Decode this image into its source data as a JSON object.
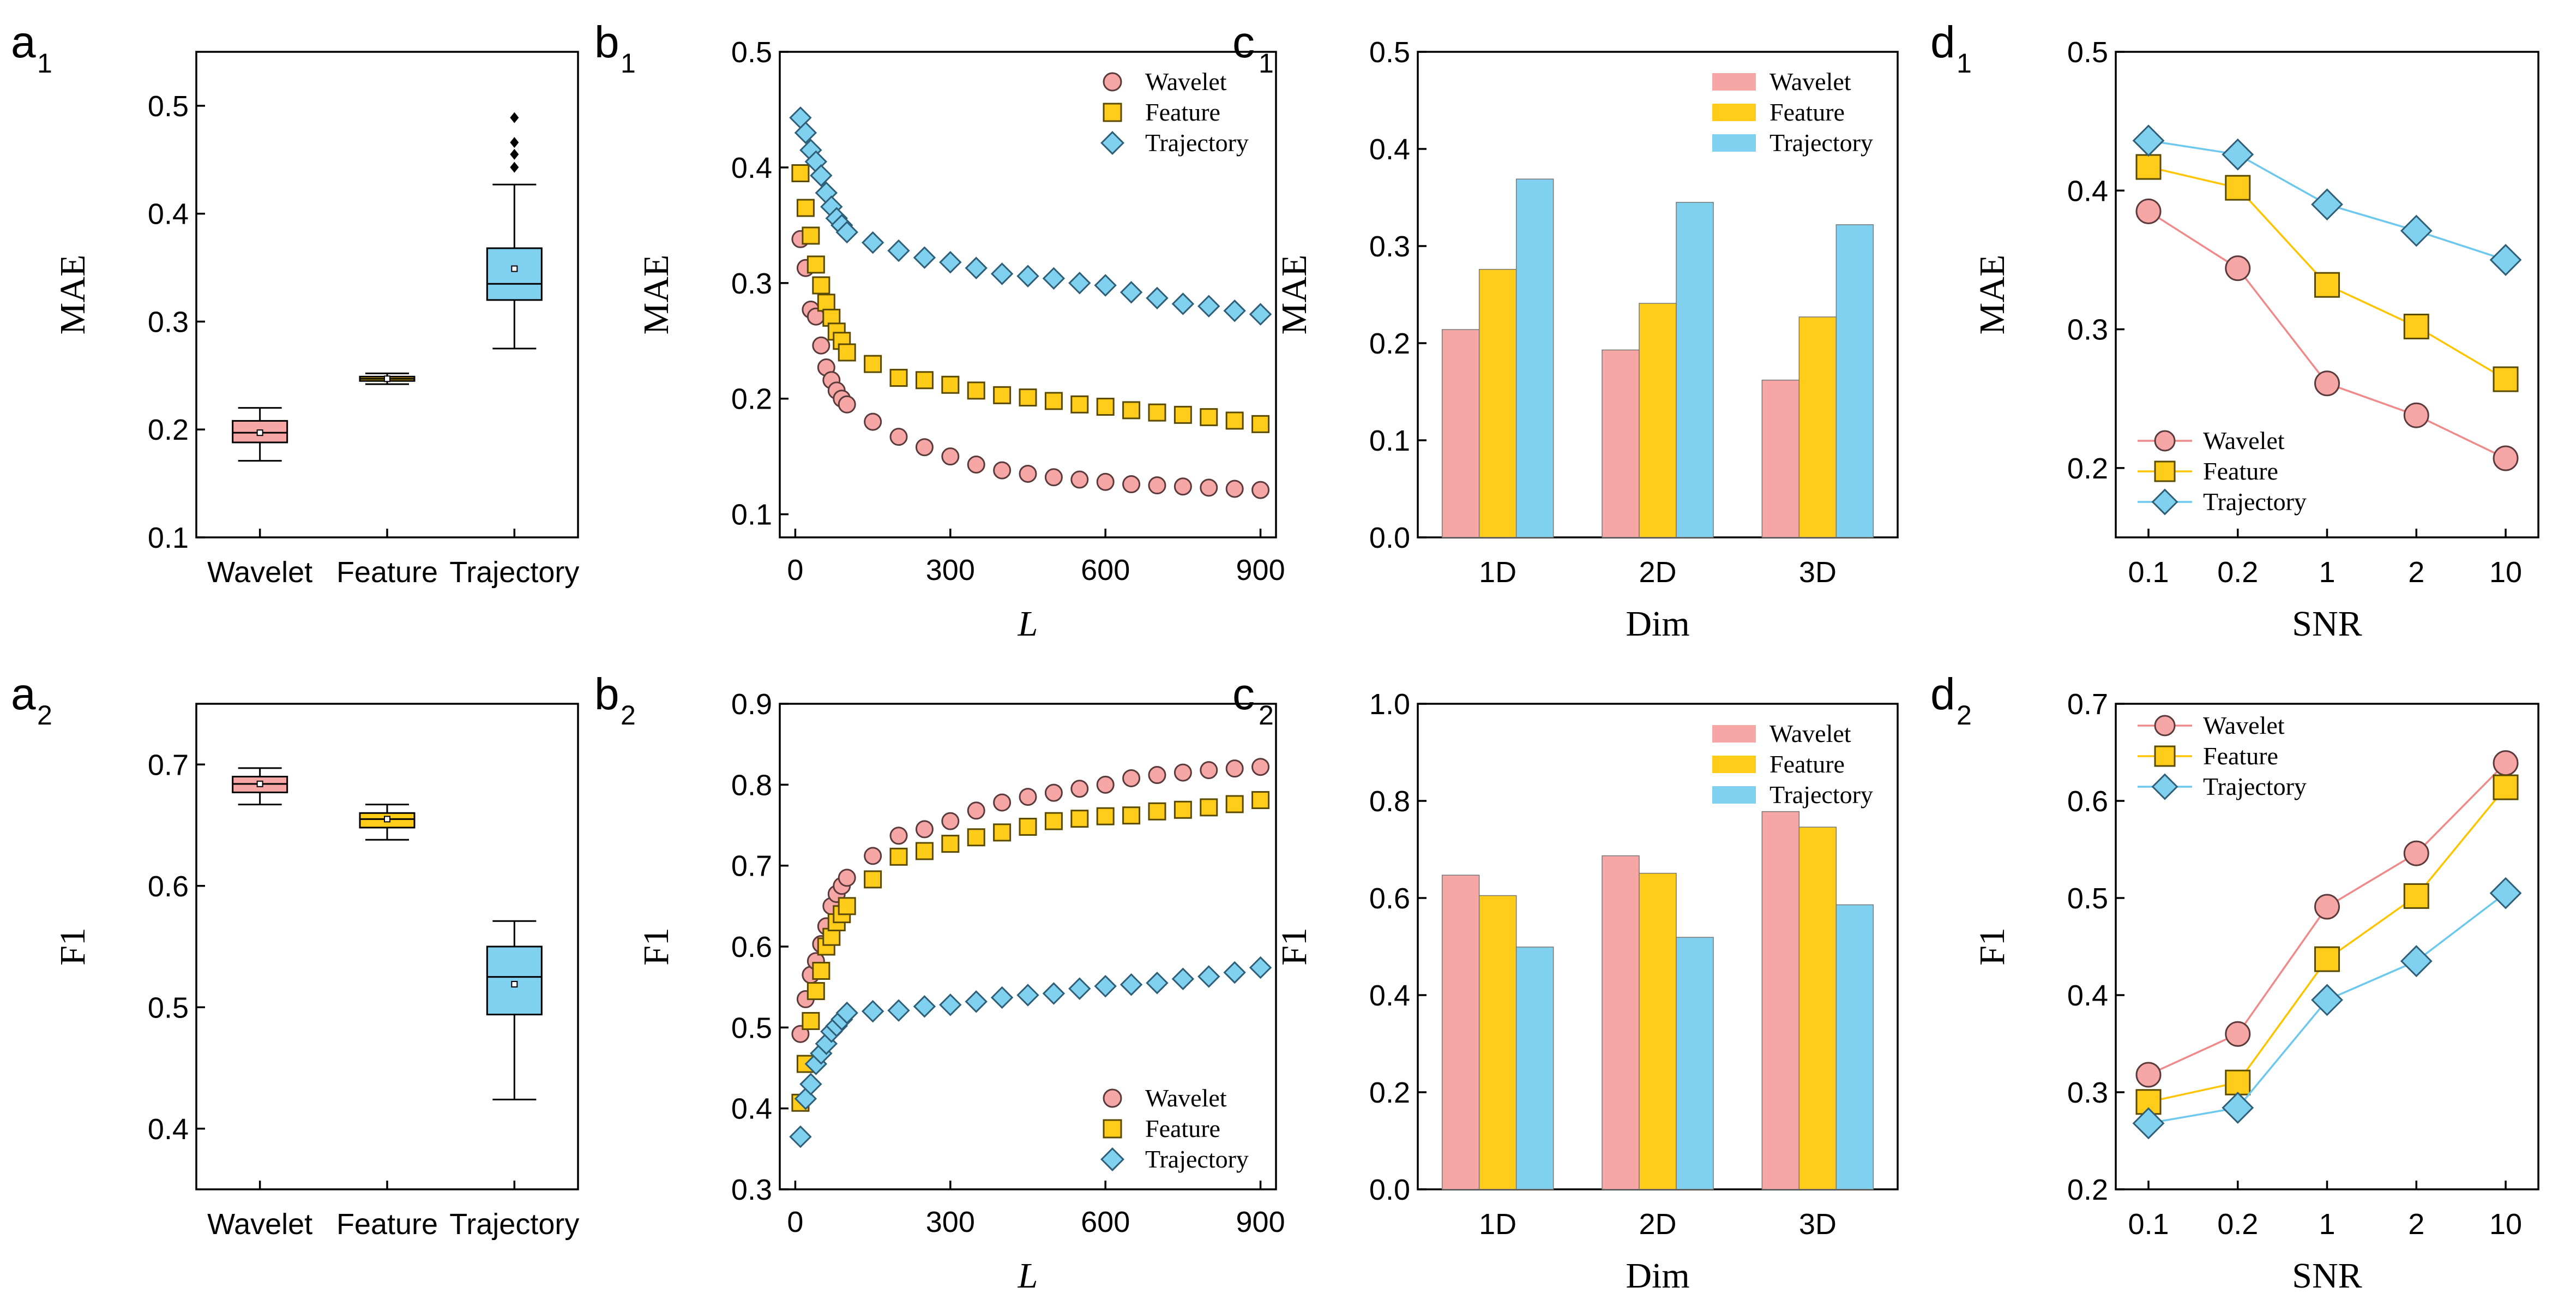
{
  "colors": {
    "wavelet": "#F7A6A6",
    "feature": "#FFCC1A",
    "trajectory": "#80D0F0",
    "wavelet_line": "#F08A8A",
    "feature_line": "#FFC400",
    "trajectory_line": "#6CC8EC"
  },
  "chart_data": [
    {
      "id": "a1",
      "panel_label": "a",
      "panel_sub": "1",
      "type": "box",
      "ylabel": "MAE",
      "xlabel": "",
      "ylim": [
        0.1,
        0.55
      ],
      "yticks": [
        "0.1",
        "0.2",
        "0.3",
        "0.4",
        "0.5"
      ],
      "categories": [
        "Wavelet",
        "Feature",
        "Trajectory"
      ],
      "boxes": [
        {
          "name": "Wavelet",
          "color_key": "wavelet",
          "whisker_low": 0.171,
          "q1": 0.188,
          "median": 0.197,
          "q3": 0.208,
          "whisker_high": 0.22,
          "mean": 0.197,
          "outliers": []
        },
        {
          "name": "Feature",
          "color_key": "feature",
          "whisker_low": 0.242,
          "q1": 0.245,
          "median": 0.247,
          "q3": 0.249,
          "whisker_high": 0.252,
          "mean": 0.247,
          "outliers": []
        },
        {
          "name": "Trajectory",
          "color_key": "trajectory",
          "whisker_low": 0.275,
          "q1": 0.32,
          "median": 0.335,
          "q3": 0.368,
          "whisker_high": 0.427,
          "mean": 0.349,
          "outliers": [
            0.443,
            0.455,
            0.466,
            0.489
          ]
        }
      ]
    },
    {
      "id": "b1",
      "panel_label": "b",
      "panel_sub": "1",
      "type": "scatter",
      "ylabel": "MAE",
      "xlabel": "L",
      "xlim": [
        -30,
        930
      ],
      "ylim": [
        0.08,
        0.5
      ],
      "xticks": [
        "0",
        "300",
        "600",
        "900"
      ],
      "yticks": [
        "0.1",
        "0.2",
        "0.3",
        "0.4",
        "0.5"
      ],
      "legend": "top-right",
      "series": [
        {
          "name": "Wavelet",
          "marker": "circle",
          "color_key": "wavelet",
          "x": [
            10,
            20,
            30,
            40,
            50,
            60,
            70,
            80,
            90,
            100,
            150,
            200,
            250,
            300,
            350,
            400,
            450,
            500,
            550,
            600,
            650,
            700,
            750,
            800,
            850,
            900
          ],
          "y": [
            0.338,
            0.313,
            0.277,
            0.271,
            0.246,
            0.227,
            0.216,
            0.207,
            0.2,
            0.195,
            0.18,
            0.167,
            0.158,
            0.15,
            0.143,
            0.138,
            0.135,
            0.132,
            0.13,
            0.128,
            0.126,
            0.125,
            0.124,
            0.123,
            0.122,
            0.121
          ]
        },
        {
          "name": "Feature",
          "marker": "square",
          "color_key": "feature",
          "x": [
            10,
            20,
            30,
            40,
            50,
            60,
            70,
            80,
            90,
            100,
            150,
            200,
            250,
            300,
            350,
            400,
            450,
            500,
            550,
            600,
            650,
            700,
            750,
            800,
            850,
            900
          ],
          "y": [
            0.395,
            0.365,
            0.341,
            0.316,
            0.298,
            0.283,
            0.27,
            0.258,
            0.25,
            0.24,
            0.23,
            0.218,
            0.216,
            0.212,
            0.207,
            0.203,
            0.201,
            0.198,
            0.195,
            0.193,
            0.19,
            0.188,
            0.186,
            0.184,
            0.181,
            0.178
          ]
        },
        {
          "name": "Trajectory",
          "marker": "diamond",
          "color_key": "trajectory",
          "x": [
            10,
            20,
            30,
            40,
            50,
            60,
            70,
            80,
            90,
            100,
            150,
            200,
            250,
            300,
            350,
            400,
            450,
            500,
            550,
            600,
            650,
            700,
            750,
            800,
            850,
            900
          ],
          "y": [
            0.443,
            0.43,
            0.415,
            0.405,
            0.393,
            0.378,
            0.366,
            0.356,
            0.35,
            0.344,
            0.335,
            0.328,
            0.322,
            0.318,
            0.313,
            0.308,
            0.306,
            0.304,
            0.3,
            0.298,
            0.292,
            0.287,
            0.282,
            0.28,
            0.276,
            0.273
          ]
        }
      ]
    },
    {
      "id": "c1",
      "panel_label": "c",
      "panel_sub": "1",
      "type": "bar",
      "ylabel": "MAE",
      "xlabel": "Dim",
      "ylim": [
        0,
        0.5
      ],
      "yticks": [
        "0.0",
        "0.1",
        "0.2",
        "0.3",
        "0.4",
        "0.5"
      ],
      "categories": [
        "1D",
        "2D",
        "3D"
      ],
      "legend": "top-right",
      "series": [
        {
          "name": "Wavelet",
          "color_key": "wavelet",
          "values": [
            0.214,
            0.193,
            0.162
          ]
        },
        {
          "name": "Feature",
          "color_key": "feature",
          "values": [
            0.276,
            0.241,
            0.227
          ]
        },
        {
          "name": "Trajectory",
          "color_key": "trajectory",
          "values": [
            0.369,
            0.345,
            0.322
          ]
        }
      ]
    },
    {
      "id": "d1",
      "panel_label": "d",
      "panel_sub": "1",
      "type": "line",
      "ylabel": "MAE",
      "xlabel": "SNR",
      "ylim": [
        0.15,
        0.5
      ],
      "yticks": [
        "0.2",
        "0.3",
        "0.4",
        "0.5"
      ],
      "categories": [
        "0.1",
        "0.2",
        "1",
        "2",
        "10"
      ],
      "legend": "bottom-left",
      "series": [
        {
          "name": "Wavelet",
          "marker": "circle",
          "color_key": "wavelet",
          "line_key": "wavelet_line",
          "values": [
            0.385,
            0.344,
            0.261,
            0.238,
            0.207
          ]
        },
        {
          "name": "Feature",
          "marker": "square",
          "color_key": "feature",
          "line_key": "feature_line",
          "values": [
            0.417,
            0.402,
            0.332,
            0.302,
            0.264
          ]
        },
        {
          "name": "Trajectory",
          "marker": "diamond",
          "color_key": "trajectory",
          "line_key": "trajectory_line",
          "values": [
            0.436,
            0.426,
            0.39,
            0.371,
            0.35
          ]
        }
      ]
    },
    {
      "id": "a2",
      "panel_label": "a",
      "panel_sub": "2",
      "type": "box",
      "ylabel": "F1",
      "xlabel": "",
      "ylim": [
        0.35,
        0.75
      ],
      "yticks": [
        "0.4",
        "0.5",
        "0.6",
        "0.7"
      ],
      "categories": [
        "Wavelet",
        "Feature",
        "Trajectory"
      ],
      "boxes": [
        {
          "name": "Wavelet",
          "color_key": "wavelet",
          "whisker_low": 0.667,
          "q1": 0.677,
          "median": 0.684,
          "q3": 0.69,
          "whisker_high": 0.697,
          "mean": 0.684,
          "outliers": []
        },
        {
          "name": "Feature",
          "color_key": "feature",
          "whisker_low": 0.638,
          "q1": 0.648,
          "median": 0.655,
          "q3": 0.66,
          "whisker_high": 0.667,
          "mean": 0.655,
          "outliers": []
        },
        {
          "name": "Trajectory",
          "color_key": "trajectory",
          "whisker_low": 0.424,
          "q1": 0.494,
          "median": 0.525,
          "q3": 0.55,
          "whisker_high": 0.571,
          "mean": 0.519,
          "outliers": []
        }
      ]
    },
    {
      "id": "b2",
      "panel_label": "b",
      "panel_sub": "2",
      "type": "scatter",
      "ylabel": "F1",
      "xlabel": "L",
      "xlim": [
        -30,
        930
      ],
      "ylim": [
        0.3,
        0.9
      ],
      "xticks": [
        "0",
        "300",
        "600",
        "900"
      ],
      "yticks": [
        "0.3",
        "0.4",
        "0.5",
        "0.6",
        "0.7",
        "0.8",
        "0.9"
      ],
      "legend": "bottom-right",
      "series": [
        {
          "name": "Wavelet",
          "marker": "circle",
          "color_key": "wavelet",
          "x": [
            10,
            20,
            30,
            40,
            50,
            60,
            70,
            80,
            90,
            100,
            150,
            200,
            250,
            300,
            350,
            400,
            450,
            500,
            550,
            600,
            650,
            700,
            750,
            800,
            850,
            900
          ],
          "y": [
            0.492,
            0.535,
            0.565,
            0.582,
            0.603,
            0.625,
            0.65,
            0.665,
            0.675,
            0.685,
            0.712,
            0.737,
            0.745,
            0.755,
            0.768,
            0.778,
            0.785,
            0.79,
            0.795,
            0.8,
            0.808,
            0.812,
            0.815,
            0.818,
            0.82,
            0.822
          ]
        },
        {
          "name": "Feature",
          "marker": "square",
          "color_key": "feature",
          "x": [
            10,
            20,
            30,
            40,
            50,
            60,
            70,
            80,
            90,
            100,
            150,
            200,
            250,
            300,
            350,
            400,
            450,
            500,
            550,
            600,
            650,
            700,
            750,
            800,
            850,
            900
          ],
          "y": [
            0.407,
            0.455,
            0.508,
            0.545,
            0.57,
            0.6,
            0.612,
            0.63,
            0.64,
            0.65,
            0.683,
            0.711,
            0.718,
            0.727,
            0.735,
            0.741,
            0.748,
            0.755,
            0.758,
            0.761,
            0.762,
            0.767,
            0.769,
            0.772,
            0.776,
            0.781
          ]
        },
        {
          "name": "Trajectory",
          "marker": "diamond",
          "color_key": "trajectory",
          "x": [
            10,
            20,
            30,
            40,
            50,
            60,
            70,
            80,
            90,
            100,
            150,
            200,
            250,
            300,
            350,
            400,
            450,
            500,
            550,
            600,
            650,
            700,
            750,
            800,
            850,
            900
          ],
          "y": [
            0.365,
            0.412,
            0.43,
            0.455,
            0.468,
            0.48,
            0.495,
            0.502,
            0.51,
            0.518,
            0.52,
            0.521,
            0.526,
            0.528,
            0.532,
            0.537,
            0.54,
            0.542,
            0.548,
            0.551,
            0.553,
            0.555,
            0.56,
            0.563,
            0.568,
            0.574
          ]
        }
      ]
    },
    {
      "id": "c2",
      "panel_label": "c",
      "panel_sub": "2",
      "type": "bar",
      "ylabel": "F1",
      "xlabel": "Dim",
      "ylim": [
        0,
        1.0
      ],
      "yticks": [
        "0.0",
        "0.2",
        "0.4",
        "0.6",
        "0.8",
        "1.0"
      ],
      "categories": [
        "1D",
        "2D",
        "3D"
      ],
      "legend": "top-right",
      "series": [
        {
          "name": "Wavelet",
          "color_key": "wavelet",
          "values": [
            0.647,
            0.687,
            0.778
          ]
        },
        {
          "name": "Feature",
          "color_key": "feature",
          "values": [
            0.605,
            0.651,
            0.746
          ]
        },
        {
          "name": "Trajectory",
          "color_key": "trajectory",
          "values": [
            0.499,
            0.519,
            0.586
          ]
        }
      ]
    },
    {
      "id": "d2",
      "panel_label": "d",
      "panel_sub": "2",
      "type": "line",
      "ylabel": "F1",
      "xlabel": "SNR",
      "ylim": [
        0.2,
        0.7
      ],
      "yticks": [
        "0.2",
        "0.3",
        "0.4",
        "0.5",
        "0.6",
        "0.7"
      ],
      "categories": [
        "0.1",
        "0.2",
        "1",
        "2",
        "10"
      ],
      "legend": "top-left",
      "series": [
        {
          "name": "Wavelet",
          "marker": "circle",
          "color_key": "wavelet",
          "line_key": "wavelet_line",
          "values": [
            0.318,
            0.36,
            0.491,
            0.546,
            0.639
          ]
        },
        {
          "name": "Feature",
          "marker": "square",
          "color_key": "feature",
          "line_key": "feature_line",
          "values": [
            0.29,
            0.31,
            0.437,
            0.502,
            0.614
          ]
        },
        {
          "name": "Trajectory",
          "marker": "diamond",
          "color_key": "trajectory",
          "line_key": "trajectory_line",
          "values": [
            0.268,
            0.284,
            0.395,
            0.435,
            0.505
          ]
        }
      ]
    }
  ]
}
